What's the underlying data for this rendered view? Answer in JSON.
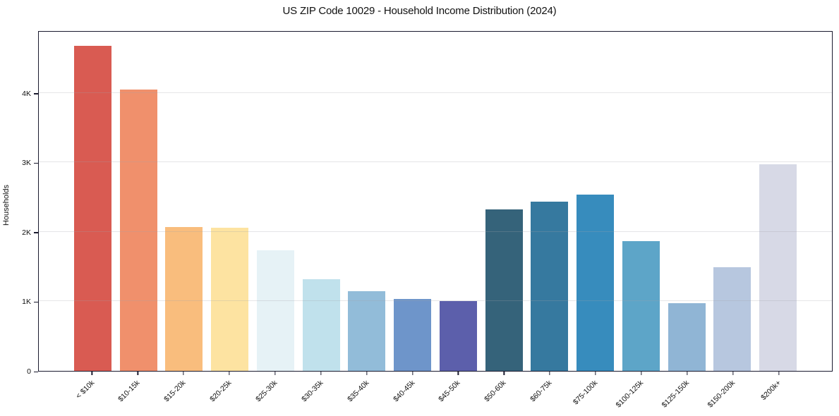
{
  "chart_data": {
    "type": "bar",
    "title": "US ZIP Code 10029 - Household Income Distribution (2024)",
    "xlabel": "",
    "ylabel": "Households",
    "categories": [
      "< $10k",
      "$10-15k",
      "$15-20k",
      "$20-25k",
      "$25-30k",
      "$30-35k",
      "$35-40k",
      "$40-45k",
      "$45-50k",
      "$50-60k",
      "$60-75k",
      "$75-100k",
      "$100-125k",
      "$125-150k",
      "$150-200k",
      "$200k+"
    ],
    "values": [
      4680,
      4050,
      2070,
      2060,
      1740,
      1320,
      1150,
      1040,
      1000,
      2320,
      2440,
      2540,
      1870,
      970,
      1490,
      2970
    ],
    "bar_colors": [
      "#d95b52",
      "#f0906c",
      "#f9bd7d",
      "#fde3a1",
      "#e6f2f6",
      "#c0e1ec",
      "#92bcd9",
      "#6e95ca",
      "#5c5fab",
      "#35637a",
      "#36799f",
      "#378cbd",
      "#5da5c8",
      "#90b5d5",
      "#b7c7df",
      "#d7d9e6"
    ],
    "ylim": [
      0,
      4900
    ],
    "yticks": [
      0,
      1000,
      2000,
      3000,
      4000
    ],
    "ytick_labels": [
      "0",
      "1K",
      "2K",
      "3K",
      "4K"
    ],
    "grid": "horizontal",
    "legend_position": "none",
    "axis_color": "#1a1a2e",
    "background_color": "#ffffff"
  }
}
